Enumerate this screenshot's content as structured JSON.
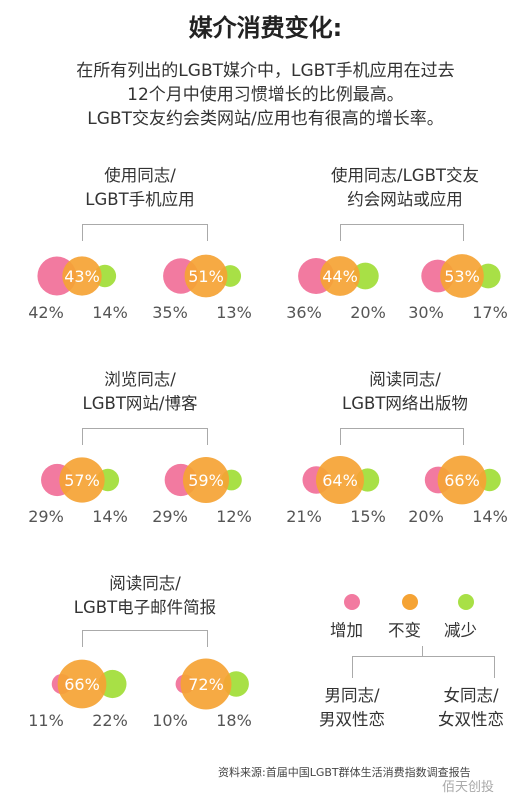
{
  "title": "媒介消费变化:",
  "subtitle_lines": [
    "在所有列出的LGBT媒介中，LGBT手机应用在过去",
    "12个月中使用习惯增长的比例最高。",
    "LGBT交友约会类网站/应用也有很高的增长率。"
  ],
  "colors": {
    "increase": "#f27aa0",
    "same": "#f5a334",
    "decrease": "#a8e046"
  },
  "legend": {
    "increase": "增加",
    "same": "不变",
    "decrease": "减少"
  },
  "group_labels": {
    "male": [
      "男同志/",
      "男双性恋"
    ],
    "female": [
      "女同志/",
      "女双性恋"
    ]
  },
  "chart_data": [
    {
      "title": [
        "使用同志/",
        "LGBT手机应用"
      ],
      "groups": [
        {
          "group": "男同志/男双性恋",
          "increase": 42,
          "same": 43,
          "decrease": 14
        },
        {
          "group": "女同志/女双性恋",
          "increase": 35,
          "same": 51,
          "decrease": 13
        }
      ]
    },
    {
      "title": [
        "使用同志/LGBT交友",
        "约会网站或应用"
      ],
      "groups": [
        {
          "group": "男同志/男双性恋",
          "increase": 36,
          "same": 44,
          "decrease": 20
        },
        {
          "group": "女同志/女双性恋",
          "increase": 30,
          "same": 53,
          "decrease": 17
        }
      ]
    },
    {
      "title": [
        "浏览同志/",
        "LGBT网站/博客"
      ],
      "groups": [
        {
          "group": "男同志/男双性恋",
          "increase": 29,
          "same": 57,
          "decrease": 14
        },
        {
          "group": "女同志/女双性恋",
          "increase": 29,
          "same": 59,
          "decrease": 12
        }
      ]
    },
    {
      "title": [
        "阅读同志/",
        "LGBT网络出版物"
      ],
      "groups": [
        {
          "group": "男同志/男双性恋",
          "increase": 21,
          "same": 64,
          "decrease": 15
        },
        {
          "group": "女同志/女双性恋",
          "increase": 20,
          "same": 66,
          "decrease": 14
        }
      ]
    },
    {
      "title": [
        "阅读同志/",
        "LGBT电子邮件简报"
      ],
      "groups": [
        {
          "group": "男同志/男双性恋",
          "increase": 11,
          "same": 66,
          "decrease": 22
        },
        {
          "group": "女同志/女双性恋",
          "increase": 10,
          "same": 72,
          "decrease": 18
        }
      ]
    }
  ],
  "source": "资料来源:首届中国LGBT群体生活消费指数调查报告",
  "watermark": "佰天创投"
}
